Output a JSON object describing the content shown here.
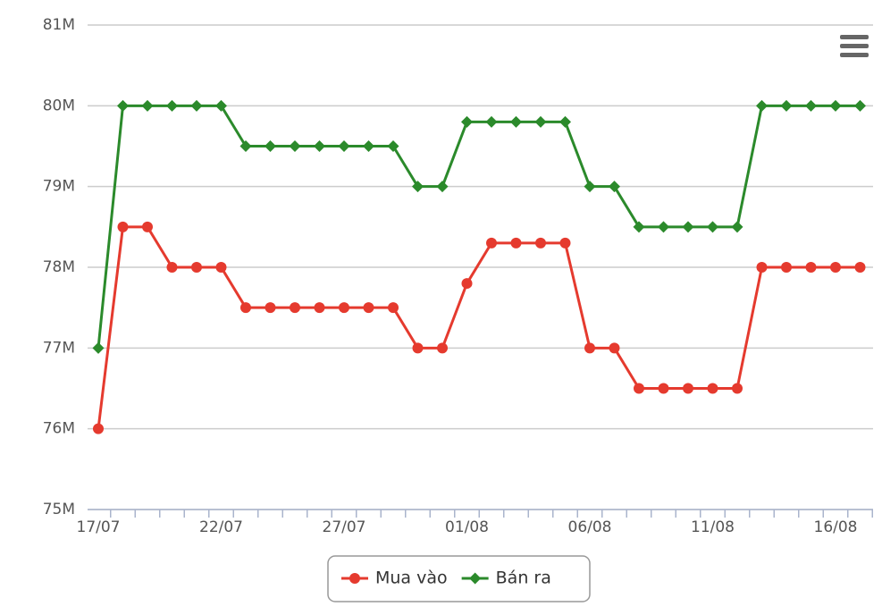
{
  "chart_data": {
    "type": "line",
    "categories": [
      "17/07",
      null,
      null,
      null,
      null,
      "22/07",
      null,
      null,
      null,
      null,
      "27/07",
      null,
      null,
      null,
      null,
      "01/08",
      null,
      null,
      null,
      null,
      "06/08",
      null,
      null,
      null,
      null,
      "11/08",
      null,
      null,
      null,
      null,
      "16/08",
      null
    ],
    "series": [
      {
        "name": "Mua vào",
        "color": "#e53a2e",
        "values": [
          76000000,
          78500000,
          78500000,
          78000000,
          78000000,
          78000000,
          77500000,
          77500000,
          77500000,
          77500000,
          77500000,
          77500000,
          77500000,
          77000000,
          77000000,
          77800000,
          78300000,
          78300000,
          78300000,
          78300000,
          77000000,
          77000000,
          76500000,
          76500000,
          76500000,
          76500000,
          76500000,
          78000000,
          78000000,
          78000000,
          78000000,
          78000000
        ]
      },
      {
        "name": "Bán ra",
        "color": "#2b8a2b",
        "values": [
          77000000,
          80000000,
          80000000,
          80000000,
          80000000,
          80000000,
          79500000,
          79500000,
          79500000,
          79500000,
          79500000,
          79500000,
          79500000,
          79000000,
          79000000,
          79800000,
          79800000,
          79800000,
          79800000,
          79800000,
          79000000,
          79000000,
          78500000,
          78500000,
          78500000,
          78500000,
          78500000,
          80000000,
          80000000,
          80000000,
          80000000,
          80000000
        ]
      }
    ],
    "ylim": [
      75000000,
      81000000
    ],
    "yticks": [
      {
        "value": 75000000,
        "label": "75M"
      },
      {
        "value": 76000000,
        "label": "76M"
      },
      {
        "value": 77000000,
        "label": "77M"
      },
      {
        "value": 78000000,
        "label": "78M"
      },
      {
        "value": 79000000,
        "label": "79M"
      },
      {
        "value": 80000000,
        "label": "80M"
      },
      {
        "value": 81000000,
        "label": "81M"
      }
    ],
    "grid": true,
    "legend": "bottom"
  }
}
